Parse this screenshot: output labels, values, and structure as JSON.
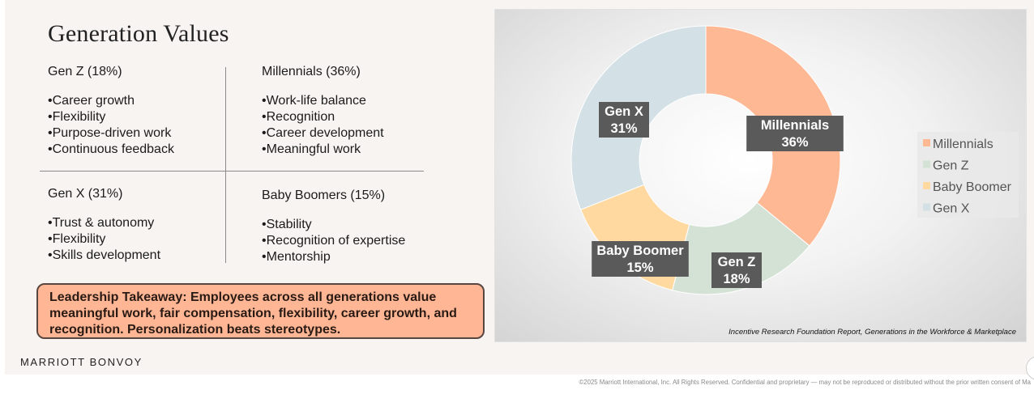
{
  "title": "Generation Values",
  "quadrants": [
    {
      "heading": "Gen Z (18%)",
      "items": [
        "Career growth",
        "Flexibility",
        "Purpose-driven work",
        "Continuous feedback"
      ]
    },
    {
      "heading": "Millennials (36%)",
      "items": [
        "Work-life balance",
        "Recognition",
        "Career development",
        "Meaningful work"
      ]
    },
    {
      "heading": "Gen X (31%)",
      "items": [
        "Trust & autonomy",
        "Flexibility",
        "Skills development"
      ]
    },
    {
      "heading": "Baby Boomers (15%)",
      "items": [
        "Stability",
        "Recognition of expertise",
        "Mentorship"
      ]
    }
  ],
  "takeaway": "Leadership Takeaway: Employees across all generations value meaningful work, fair compensation, flexibility, career growth, and recognition. Personalization beats stereotypes.",
  "brand": "MARRIOTT BONVOY",
  "chart_data": {
    "type": "pie",
    "variant": "donut",
    "categories": [
      "Millennials",
      "Gen Z",
      "Baby Boomer",
      "Gen X"
    ],
    "values": [
      36,
      18,
      15,
      31
    ],
    "unit": "%",
    "data_labels": [
      [
        "Millennials",
        "36%"
      ],
      [
        "Gen Z",
        "18%"
      ],
      [
        "Baby Boomer",
        "15%"
      ],
      [
        "Gen X",
        "31%"
      ]
    ],
    "colors": [
      "#ffb894",
      "#d4e2d6",
      "#ffd9a0",
      "#d3e0e5"
    ],
    "legend": [
      "Millennials",
      "Gen Z",
      "Baby Boomer",
      "Gen X"
    ],
    "legend_position": "right",
    "label_box_color": "#5a5a5a"
  },
  "source": "Incentive Research Foundation Report, Generations in the Workforce & Marketplace",
  "footer": "©2025 Marriott International, Inc. All Rights Reserved. Confidential and proprietary — may not be reproduced or distributed without the prior written consent of Ma"
}
